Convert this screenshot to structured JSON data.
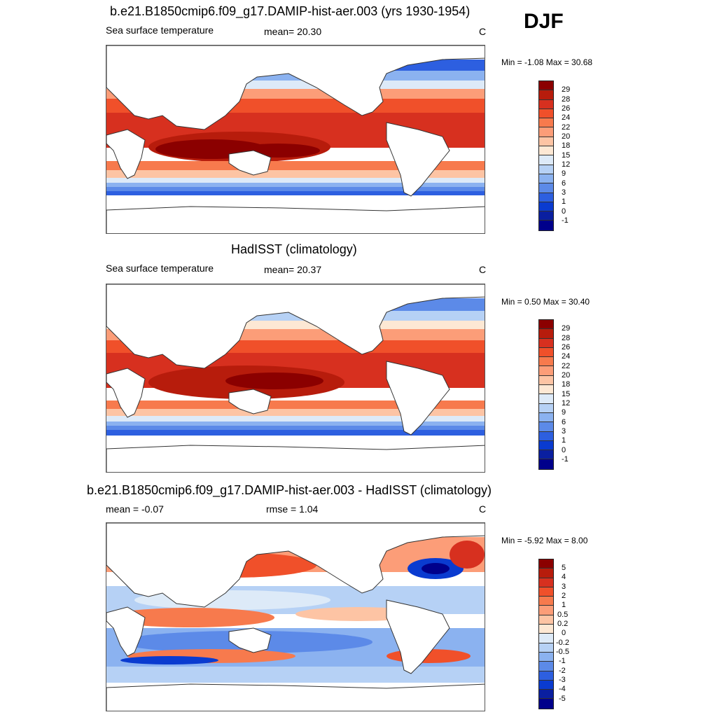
{
  "season": "DJF",
  "panels": [
    {
      "title": "b.e21.B1850cmip6.f09_g17.DAMIP-hist-aer.003 (yrs 1930-1954)",
      "left_label": "Sea surface temperature",
      "center_label": "mean=  20.30",
      "unit": "C",
      "minmax": "Min =  -1.08 Max =  30.68"
    },
    {
      "title": "HadISST (climatology)",
      "left_label": "Sea surface temperature",
      "center_label": "mean=  20.37",
      "unit": "C",
      "minmax": "Min =   0.50 Max =  30.40"
    },
    {
      "title": "b.e21.B1850cmip6.f09_g17.DAMIP-hist-aer.003 - HadISST (climatology)",
      "left_label": "mean =  -0.07",
      "center_label": "rmse =   1.04",
      "unit": "C",
      "minmax": "Min =  -5.92 Max =   8.00"
    }
  ],
  "chart_data": [
    {
      "type": "heatmap",
      "title": "b.e21.B1850cmip6.f09_g17.DAMIP-hist-aer.003 (yrs 1930-1954)",
      "variable": "Sea surface temperature",
      "mean": 20.3,
      "unit": "C",
      "min": -1.08,
      "max": 30.68,
      "colorbar_levels": [
        29,
        28,
        26,
        24,
        22,
        20,
        18,
        15,
        12,
        9,
        6,
        3,
        1,
        0,
        -1
      ],
      "colors": [
        "#8b0000",
        "#b71c0c",
        "#d7301f",
        "#f0502a",
        "#f77a4d",
        "#fc9d78",
        "#fdc4a4",
        "#fde8d4",
        "#ddeaf8",
        "#b6d1f5",
        "#8bb2f0",
        "#5c8ae8",
        "#2d5fe0",
        "#0a3bd0",
        "#0a1fa0",
        "#00008b"
      ]
    },
    {
      "type": "heatmap",
      "title": "HadISST (climatology)",
      "variable": "Sea surface temperature",
      "mean": 20.37,
      "unit": "C",
      "min": 0.5,
      "max": 30.4,
      "colorbar_levels": [
        29,
        28,
        26,
        24,
        22,
        20,
        18,
        15,
        12,
        9,
        6,
        3,
        1,
        0,
        -1
      ],
      "colors": [
        "#8b0000",
        "#b71c0c",
        "#d7301f",
        "#f0502a",
        "#f77a4d",
        "#fc9d78",
        "#fdc4a4",
        "#fde8d4",
        "#ddeaf8",
        "#b6d1f5",
        "#8bb2f0",
        "#5c8ae8",
        "#2d5fe0",
        "#0a3bd0",
        "#0a1fa0",
        "#00008b"
      ]
    },
    {
      "type": "heatmap",
      "title": "b.e21.B1850cmip6.f09_g17.DAMIP-hist-aer.003 - HadISST (climatology)",
      "mean": -0.07,
      "rmse": 1.04,
      "unit": "C",
      "min": -5.92,
      "max": 8.0,
      "colorbar_levels": [
        "5",
        "4",
        "3",
        "2",
        "1",
        "0.5",
        "0.2",
        "0",
        "-0.2",
        "-0.5",
        "-1",
        "-2",
        "-3",
        "-4",
        "-5"
      ],
      "colors": [
        "#8b0000",
        "#b71c0c",
        "#d7301f",
        "#f0502a",
        "#f77a4d",
        "#fc9d78",
        "#fdc4a4",
        "#fde8d4",
        "#ddeaf8",
        "#b6d1f5",
        "#8bb2f0",
        "#5c8ae8",
        "#2d5fe0",
        "#0a3bd0",
        "#0a1fa0",
        "#00008b"
      ]
    }
  ]
}
